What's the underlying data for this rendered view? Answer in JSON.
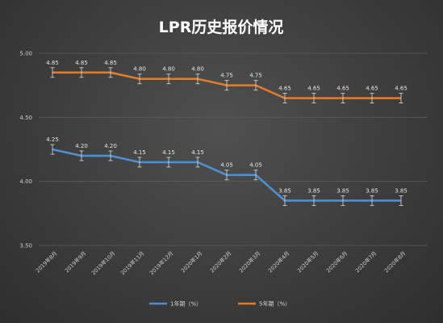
{
  "chart_data": {
    "type": "line",
    "title": "LPR历史报价情况",
    "categories": [
      "2019年8月",
      "2019年9月",
      "2019年10月",
      "2019年11月",
      "2019年12月",
      "2020年1月",
      "2020年2月",
      "2020年3月",
      "2020年4月",
      "2020年5月",
      "2020年6月",
      "2020年7月",
      "2020年8月"
    ],
    "ylim": [
      3.5,
      5.0
    ],
    "yticks": [
      "3.50",
      "4.00",
      "4.50",
      "5.00"
    ],
    "grid": true,
    "error_bars": true,
    "legend_position": "bottom",
    "series": [
      {
        "name": "1年期（%）",
        "color": "#4f8fcf",
        "values": [
          4.25,
          4.2,
          4.2,
          4.15,
          4.15,
          4.15,
          4.05,
          4.05,
          3.85,
          3.85,
          3.85,
          3.85,
          3.85
        ],
        "labels": [
          "4.25",
          "4.20",
          "4.20",
          "4.15",
          "4.15",
          "4.15",
          "4.05",
          "4.05",
          "3.85",
          "3.85",
          "3.85",
          "3.85",
          "3.85"
        ]
      },
      {
        "name": "5年期（%）",
        "color": "#e07b2e",
        "values": [
          4.85,
          4.85,
          4.85,
          4.8,
          4.8,
          4.8,
          4.75,
          4.75,
          4.65,
          4.65,
          4.65,
          4.65,
          4.65
        ],
        "labels": [
          "4.85",
          "4.85",
          "4.85",
          "4.80",
          "4.80",
          "4.80",
          "4.75",
          "4.75",
          "4.65",
          "4.65",
          "4.65",
          "4.65",
          "4.65"
        ]
      }
    ]
  }
}
